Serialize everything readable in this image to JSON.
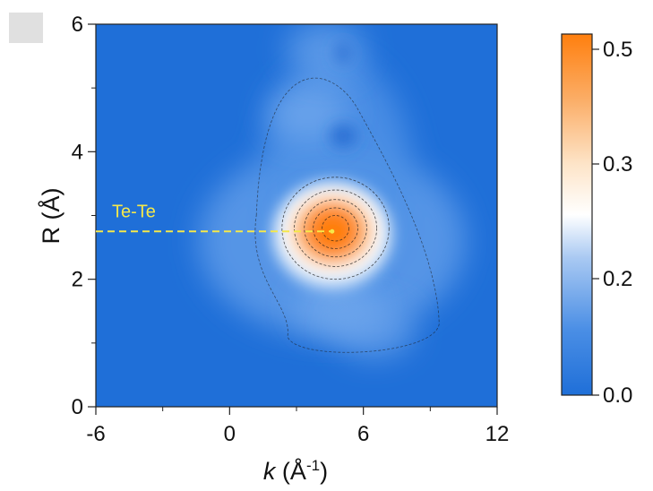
{
  "chart_data": {
    "type": "heatmap",
    "title": "",
    "xlabel_italic": "k",
    "xlabel_rest": " (Å",
    "xlabel_sup": "-1",
    "xlabel_close": ")",
    "ylabel": "R (Å)",
    "xlim": [
      -6,
      12
    ],
    "ylim": [
      0,
      6
    ],
    "xticks": [
      "-6",
      "0",
      "6",
      "12"
    ],
    "xtick_values": [
      -6,
      0,
      6,
      12
    ],
    "yticks": [
      "0",
      "2",
      "4",
      "6"
    ],
    "ytick_values": [
      0,
      2,
      4,
      6
    ],
    "colorbar": {
      "range": [
        0,
        0.52
      ],
      "ticks": [
        "0.0",
        "0.2",
        "0.3",
        "0.5"
      ],
      "tick_values": [
        0.0,
        0.2,
        0.3,
        0.5
      ],
      "colors": [
        "#1f6fd8",
        "#ffffff",
        "#ff7f0e"
      ]
    },
    "peaks": [
      {
        "k": 4.6,
        "R": 2.75,
        "amplitude": 0.5
      },
      {
        "k": 4.8,
        "R": 1.55,
        "amplitude": 0.1
      },
      {
        "k": 6.5,
        "R": 1.2,
        "amplitude": 0.05
      },
      {
        "k": 3.5,
        "R": 4.6,
        "amplitude": 0.1
      },
      {
        "k": 4.3,
        "R": 5.6,
        "amplitude": 0.06
      }
    ],
    "annotations": [
      {
        "text": "Te-Te",
        "k": 4.6,
        "R": 2.75,
        "color": "#f5e84a"
      }
    ],
    "background_color": "#1f6fd8",
    "peak_color": "#ff7f0e"
  }
}
